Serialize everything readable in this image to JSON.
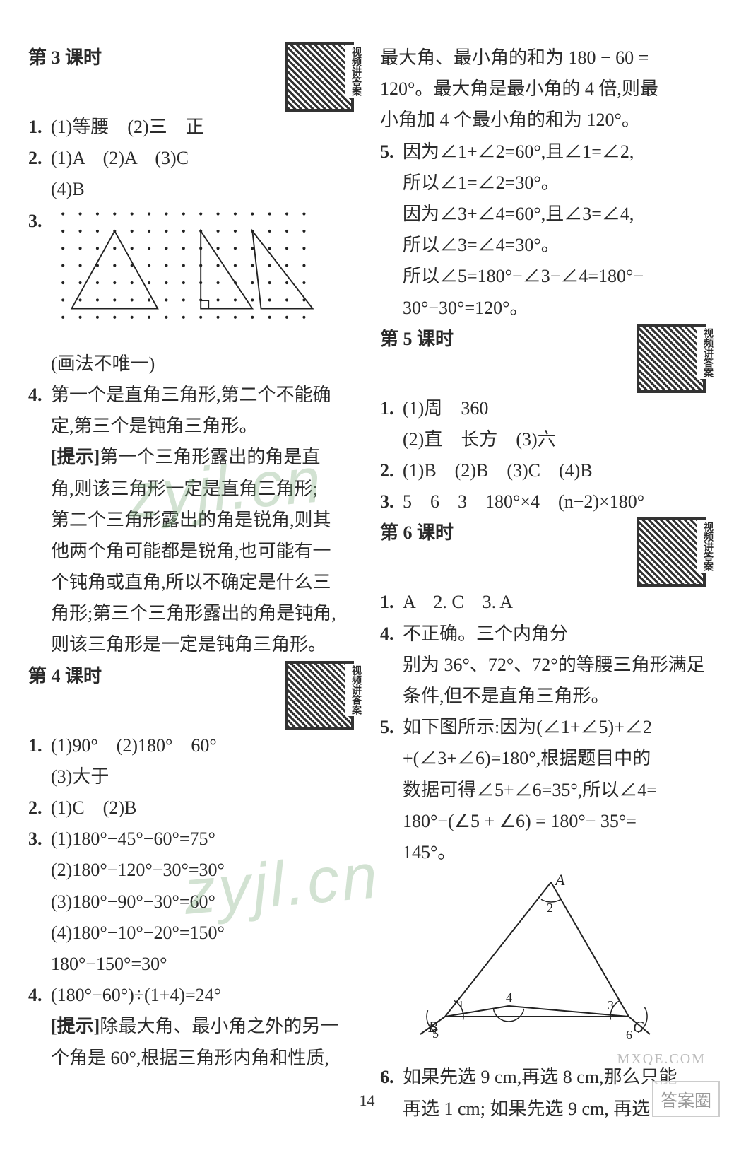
{
  "page_number": "14",
  "watermarks": {
    "main": "zyjl.cn",
    "corner": "答案圈",
    "small": "MXQE.COM"
  },
  "qr_label": "视频讲答案",
  "left": {
    "lesson3": {
      "title": "第 3 课时",
      "l1": "(1)等腰　(2)三　正",
      "l2": "(1)A　(2)A　(3)C",
      "l2b": "(4)B",
      "l3_caption": "(画法不唯一)",
      "l4a": "第一个是直角三角形,第二个不能确",
      "l4b": "定,第三个是钝角三角形。",
      "l4hint_label": "[提示]",
      "l4h1": "第一个三角形露出的角是直",
      "l4h2": "角,则该三角形一定是直角三角形;",
      "l4h3": "第二个三角形露出的角是锐角,则其",
      "l4h4": "他两个角可能都是锐角,也可能有一",
      "l4h5": "个钝角或直角,所以不确定是什么三",
      "l4h6": "角形;第三个三角形露出的角是钝角,",
      "l4h7": "则该三角形是一定是钝角三角形。"
    },
    "lesson4": {
      "title": "第 4 课时",
      "l1": "(1)90°　(2)180°　60°",
      "l1b": "(3)大于",
      "l2": "(1)C　(2)B",
      "l3a": "(1)180°−45°−60°=75°",
      "l3b": "(2)180°−120°−30°=30°",
      "l3c": "(3)180°−90°−30°=60°",
      "l3d": "(4)180°−10°−20°=150°",
      "l3e": "180°−150°=30°",
      "l4a": "(180°−60°)÷(1+4)=24°",
      "l4hint_label": "[提示]",
      "l4h1": "除最大角、最小角之外的另一",
      "l4h2": "个角是 60°,根据三角形内角和性质,"
    }
  },
  "right": {
    "cont4": {
      "c1": "最大角、最小角的和为 180 − 60 =",
      "c2": "120°。最大角是最小角的 4 倍,则最",
      "c3": "小角加 4 个最小角的和为 120°。",
      "l5a": "因为∠1+∠2=60°,且∠1=∠2,",
      "l5b": "所以∠1=∠2=30°。",
      "l5c": "因为∠3+∠4=60°,且∠3=∠4,",
      "l5d": "所以∠3=∠4=30°。",
      "l5e": "所以∠5=180°−∠3−∠4=180°−",
      "l5f": "30°−30°=120°。"
    },
    "lesson5": {
      "title": "第 5 课时",
      "l1": "(1)周　360",
      "l1b": "(2)直　长方　(3)六",
      "l2": "(1)B　(2)B　(3)C　(4)B",
      "l3": "5　6　3　180°×4　(n−2)×180°"
    },
    "lesson6": {
      "title": "第 6 课时",
      "row1": "A　2. C　3. A",
      "l4a": "不正确。三个内角分",
      "l4b": "别为 36°、72°、72°的等腰三角形满足",
      "l4c": "条件,但不是直角三角形。",
      "l5a": "如下图所示:因为(∠1+∠5)+∠2",
      "l5b": "+(∠3+∠6)=180°,根据题目中的",
      "l5c": "数据可得∠5+∠6=35°,所以∠4=",
      "l5d": "180°−(∠5 + ∠6) = 180°− 35°=",
      "l5e": "145°。",
      "diagram": {
        "labels": {
          "A": "A",
          "B": "B",
          "C": "C",
          "n1": "1",
          "n2": "2",
          "n3": "3",
          "n4": "4",
          "n5": "5",
          "n6": "6"
        }
      },
      "l6a": "如果先选 9 cm,再选 8 cm,那么只能",
      "l6b": "再选 1 cm; 如果先选 9 cm, 再选"
    }
  },
  "dotgrid": {
    "rows": 7,
    "cols": 15,
    "spacing": 26,
    "triangles": [
      {
        "pts": [
          [
            3,
            1
          ],
          [
            0.5,
            5.5
          ],
          [
            5.5,
            5.5
          ]
        ]
      },
      {
        "pts": [
          [
            8,
            1
          ],
          [
            8,
            5.5
          ],
          [
            11,
            5.5
          ]
        ]
      },
      {
        "pts": [
          [
            11,
            1
          ],
          [
            11.5,
            5.5
          ],
          [
            14.5,
            5.5
          ]
        ]
      }
    ],
    "right_angle_at": [
      8,
      5.5
    ]
  },
  "tri_diagram_style": {
    "stroke": "#222",
    "stroke_width": 2
  }
}
